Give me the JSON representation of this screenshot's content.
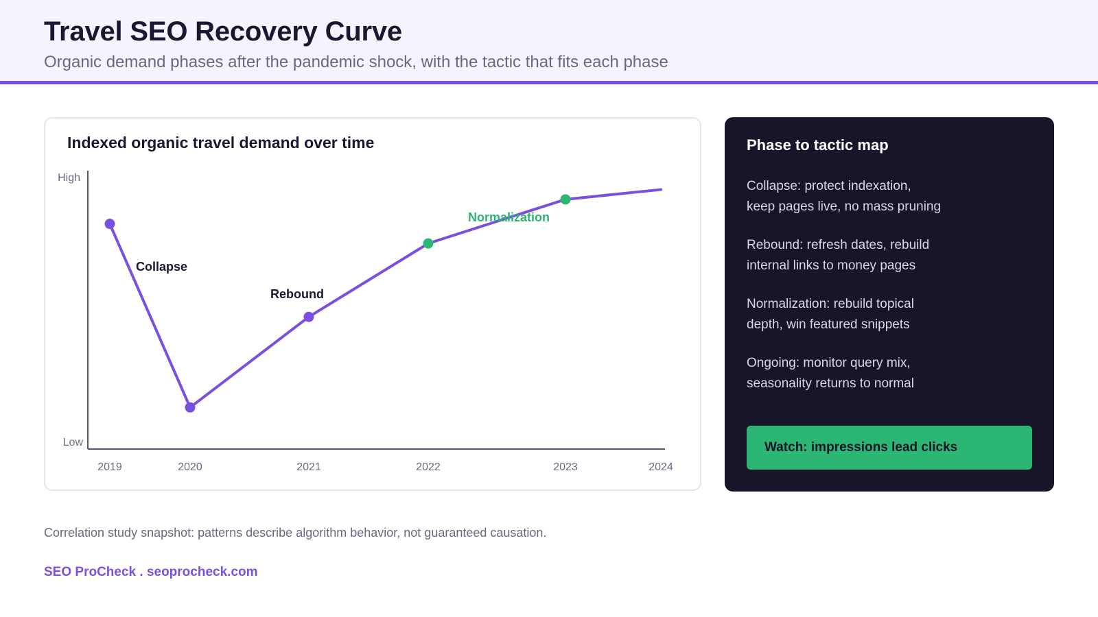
{
  "header": {
    "title": "Travel SEO Recovery Curve",
    "subtitle": "Organic demand phases after the pandemic shock, with the tactic that fits each phase"
  },
  "chart_data": {
    "type": "line",
    "title": "Indexed organic travel demand over time",
    "xlabel": "",
    "ylabel": "",
    "y_tick_labels": {
      "top": "High",
      "bottom": "Low"
    },
    "x": [
      "2019",
      "2020",
      "2021",
      "2022",
      "2023",
      "2024"
    ],
    "ylim": [
      0,
      100
    ],
    "series": [
      {
        "values": [
          85,
          10,
          47,
          77,
          95,
          99
        ],
        "point_colors": [
          "#7b4fe0",
          "#7b4fe0",
          "#7b4fe0",
          "#2bb673",
          "#2bb673",
          null
        ]
      }
    ],
    "annotations": [
      {
        "text": "Collapse",
        "color": "#1a1730"
      },
      {
        "text": "Rebound",
        "color": "#1a1730"
      },
      {
        "text": "Normalization",
        "color": "#2bb673"
      }
    ],
    "line_color": "#7b4fe0",
    "grid": false
  },
  "side_panel": {
    "title": "Phase to tactic map",
    "tactics": [
      {
        "line1": "Collapse: protect indexation,",
        "line2": "keep pages live, no mass pruning"
      },
      {
        "line1": "Rebound: refresh dates, rebuild",
        "line2": "internal links to money pages"
      },
      {
        "line1": "Normalization: rebuild topical",
        "line2": "depth, win featured snippets"
      },
      {
        "line1": "Ongoing: monitor query mix,",
        "line2": "seasonality returns to normal"
      }
    ],
    "watch_label": "Watch: impressions lead clicks"
  },
  "footer": {
    "note": "Correlation study snapshot: patterns describe algorithm behavior, not guaranteed causation.",
    "brand": "SEO ProCheck . seoprocheck.com"
  },
  "colors": {
    "accent": "#7b4fe0",
    "green": "#2bb673",
    "dark": "#17152a"
  }
}
